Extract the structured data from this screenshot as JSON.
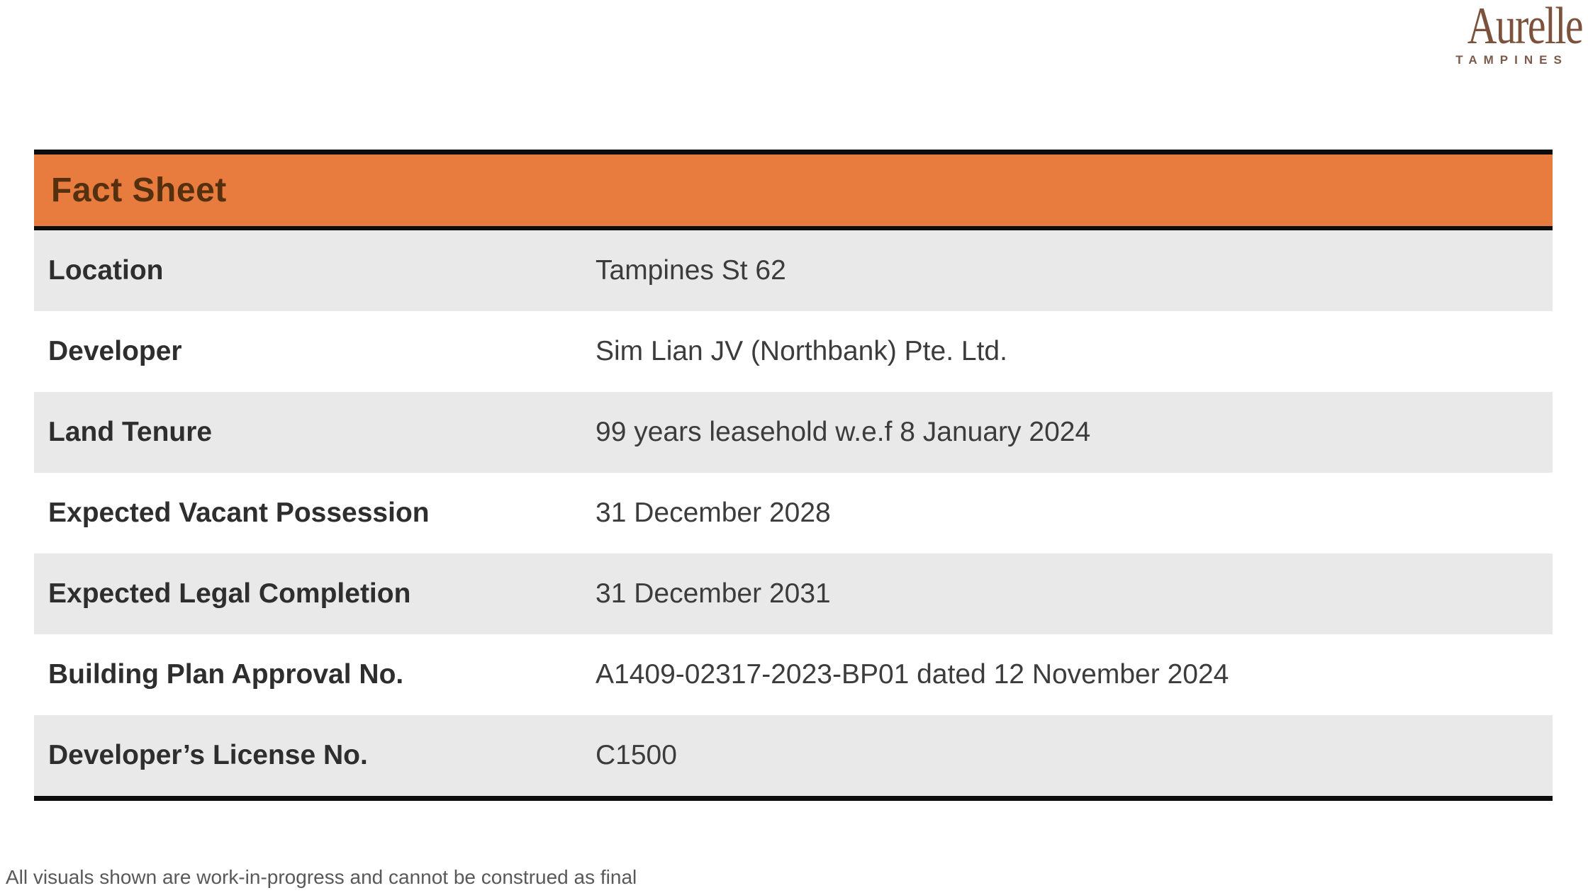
{
  "logo": {
    "name": "Aurelle",
    "subtitle": "TAMPINES"
  },
  "header": {
    "title": "Fact Sheet"
  },
  "table": {
    "rows": [
      {
        "label": "Location",
        "value": "Tampines St 62"
      },
      {
        "label": "Developer",
        "value": "Sim Lian JV (Northbank) Pte. Ltd."
      },
      {
        "label": "Land Tenure",
        "value": "99 years leasehold w.e.f 8 January 2024"
      },
      {
        "label": "Expected Vacant Possession",
        "value": "31 December 2028"
      },
      {
        "label": "Expected Legal Completion",
        "value": "31 December 2031"
      },
      {
        "label": "Building Plan Approval No.",
        "value": "A1409-02317-2023-BP01 dated 12 November 2024"
      },
      {
        "label": "Developer’s License No.",
        "value": "C1500"
      }
    ]
  },
  "footer": {
    "disclaimer": "All visuals shown are work-in-progress and cannot be construed as final"
  },
  "colors": {
    "accent": "#e87b3e",
    "accent-text": "#54300f",
    "border": "#0d0d0d",
    "row-alt": "#e9e9e9",
    "label-text": "#2e2e2e",
    "value-text": "#3c3c3c",
    "logo": "#7c523c",
    "logo-sub": "#7c5a4a",
    "muted": "#595959"
  }
}
